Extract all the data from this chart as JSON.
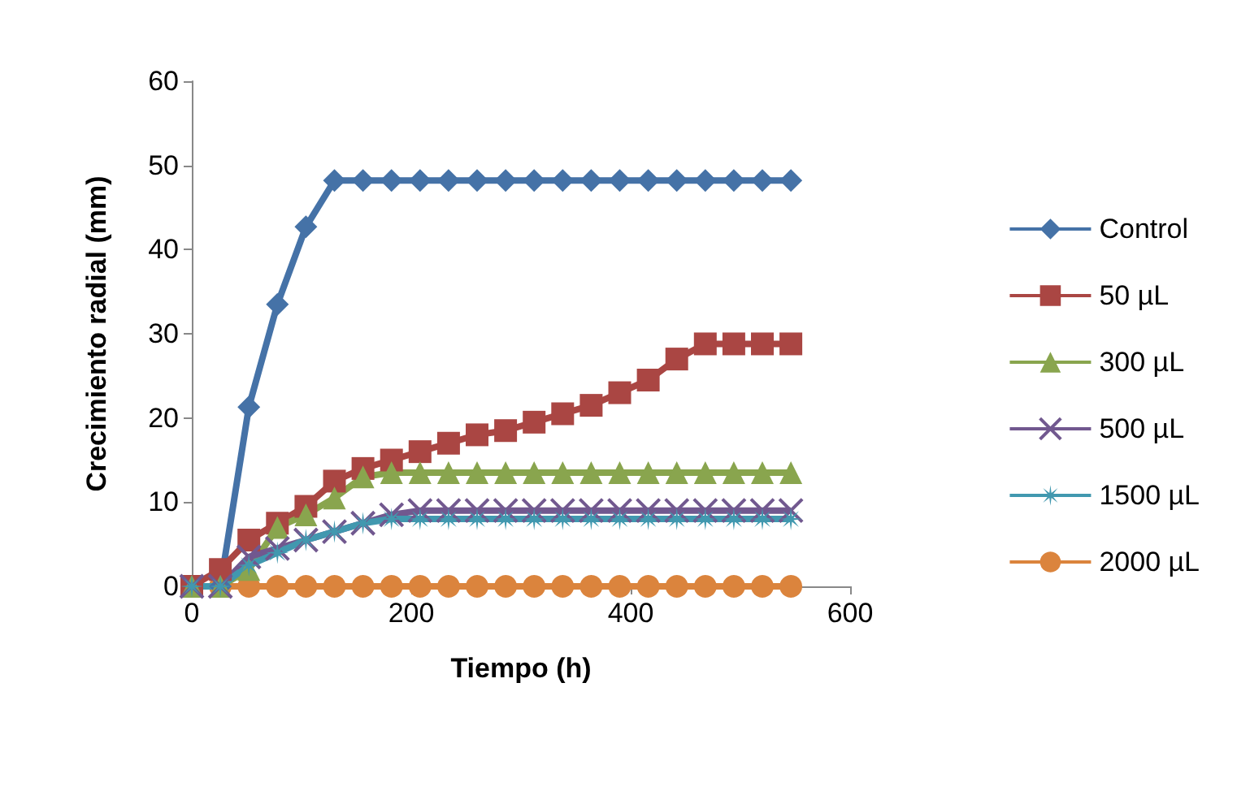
{
  "chart_data": {
    "type": "line",
    "xlabel": "Tiempo (h)",
    "ylabel": "Crecimiento radial (mm)",
    "x": [
      0,
      26,
      52,
      78,
      104,
      130,
      156,
      182,
      208,
      234,
      260,
      286,
      312,
      338,
      364,
      390,
      416,
      442,
      468,
      494,
      520,
      546
    ],
    "xlim": [
      0,
      600
    ],
    "xticks": [
      0,
      200,
      400,
      600
    ],
    "ylim": [
      0,
      60
    ],
    "yticks": [
      0,
      10,
      20,
      30,
      40,
      50,
      60
    ],
    "grid": false,
    "legend": "right",
    "line_style": "solid",
    "series": [
      {
        "name": "Control",
        "color": "#4572a7",
        "marker": "diamond",
        "values": [
          0,
          0,
          21.3,
          33.5,
          42.7,
          48.2,
          48.2,
          48.2,
          48.2,
          48.2,
          48.2,
          48.2,
          48.2,
          48.2,
          48.2,
          48.2,
          48.2,
          48.2,
          48.2,
          48.2,
          48.2,
          48.2
        ]
      },
      {
        "name": "50 µL",
        "color": "#aa4643",
        "marker": "square",
        "values": [
          0,
          2,
          5.5,
          7.5,
          9.5,
          12.5,
          14,
          15,
          16,
          17,
          18,
          18.5,
          19.5,
          20.5,
          21.5,
          23,
          24.5,
          27,
          28.8,
          28.8,
          28.8,
          28.8
        ]
      },
      {
        "name": "300 µL",
        "color": "#89a54e",
        "marker": "triangle",
        "values": [
          0,
          0,
          2,
          7,
          8.5,
          10.5,
          13,
          13.5,
          13.5,
          13.5,
          13.5,
          13.5,
          13.5,
          13.5,
          13.5,
          13.5,
          13.5,
          13.5,
          13.5,
          13.5,
          13.5,
          13.5
        ]
      },
      {
        "name": "500 µL",
        "color": "#71588f",
        "marker": "cross",
        "values": [
          0,
          0,
          3.5,
          4.5,
          5.5,
          6.5,
          7.5,
          8.5,
          9,
          9,
          9,
          9,
          9,
          9,
          9,
          9,
          9,
          9,
          9,
          9,
          9,
          9
        ]
      },
      {
        "name": "1500 µL",
        "color": "#4198af",
        "marker": "star",
        "values": [
          0,
          0,
          2.5,
          4,
          5.5,
          6.5,
          7.5,
          8,
          8,
          8,
          8,
          8,
          8,
          8,
          8,
          8,
          8,
          8,
          8,
          8,
          8,
          8
        ]
      },
      {
        "name": "2000 µL",
        "color": "#db843d",
        "marker": "circle",
        "values": [
          0,
          0,
          0,
          0,
          0,
          0,
          0,
          0,
          0,
          0,
          0,
          0,
          0,
          0,
          0,
          0,
          0,
          0,
          0,
          0,
          0,
          0
        ]
      }
    ]
  }
}
